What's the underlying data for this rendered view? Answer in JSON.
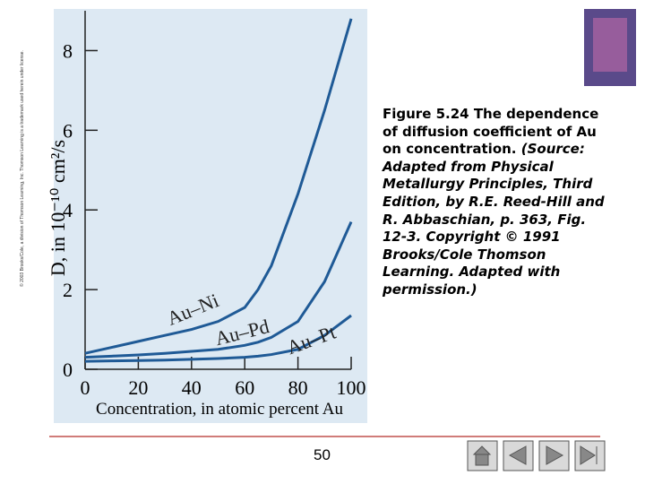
{
  "chart_data": {
    "type": "line",
    "xlabel": "Concentration, in atomic percent Au",
    "ylabel": "D, in 10⁻¹⁰ cm²/s",
    "x": [
      0,
      10,
      20,
      30,
      40,
      50,
      60,
      65,
      70,
      80,
      90,
      100
    ],
    "series": [
      {
        "name": "Au–Ni",
        "color": "#1f5a96",
        "values": [
          0.4,
          0.55,
          0.7,
          0.85,
          1.0,
          1.2,
          1.55,
          2.0,
          2.6,
          4.4,
          6.5,
          8.8
        ]
      },
      {
        "name": "Au–Pd",
        "color": "#1f5a96",
        "values": [
          0.3,
          0.33,
          0.36,
          0.4,
          0.45,
          0.5,
          0.6,
          0.68,
          0.8,
          1.2,
          2.2,
          3.7
        ]
      },
      {
        "name": "Au–Pt",
        "color": "#1f5a96",
        "values": [
          0.2,
          0.21,
          0.22,
          0.23,
          0.25,
          0.27,
          0.3,
          0.33,
          0.37,
          0.5,
          0.85,
          1.35
        ]
      }
    ],
    "xlim": [
      0,
      100
    ],
    "xticks": [
      0,
      20,
      40,
      60,
      80,
      100
    ],
    "ylim": [
      0,
      9
    ],
    "yticks": [
      0,
      2,
      4,
      6,
      8
    ]
  },
  "caption": "Figure 5.24 The dependence of diffusion coefficient of Au on concentration.",
  "source": "(Source: Adapted from Physical Metallurgy Principles, Third Edition, by R.E. Reed-Hill and R. Abbaschian, p. 363, Fig. 12-3. Copyright © 1991 Brooks/Cole Thomson Learning. Adapted with permission.)",
  "copyright": "© 2003 Brooks/Cole, a division of Thomson Learning, Inc. Thomson Learning is a trademark used herein under license.",
  "page_number": "50"
}
